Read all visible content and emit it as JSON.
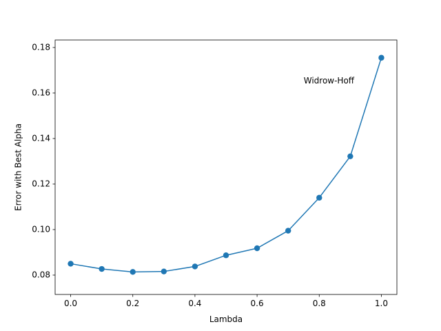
{
  "chart_data": {
    "type": "line",
    "title": "",
    "xlabel": "Lambda",
    "ylabel": "Error with Best Alpha",
    "xlim": [
      -0.05,
      1.05
    ],
    "ylim": [
      0.0715,
      0.1833
    ],
    "x_ticks": [
      0.0,
      0.2,
      0.4,
      0.6,
      0.8,
      1.0
    ],
    "x_tick_labels": [
      "0.0",
      "0.2",
      "0.4",
      "0.6",
      "0.8",
      "1.0"
    ],
    "y_ticks": [
      0.08,
      0.1,
      0.12,
      0.14,
      0.16,
      0.18
    ],
    "y_tick_labels": [
      "0.08",
      "0.10",
      "0.12",
      "0.14",
      "0.16",
      "0.18"
    ],
    "grid": false,
    "series": [
      {
        "color": "#1f77b4",
        "marker": "circle",
        "x": [
          0.0,
          0.1,
          0.2,
          0.3,
          0.4,
          0.5,
          0.6,
          0.7,
          0.8,
          0.9,
          1.0
        ],
        "y": [
          0.085,
          0.0827,
          0.0814,
          0.0816,
          0.0838,
          0.0887,
          0.0918,
          0.0995,
          0.114,
          0.1322,
          0.1755
        ]
      }
    ],
    "annotations": [
      {
        "text": "Widrow-Hoff",
        "x": 0.75,
        "y": 0.1652
      }
    ]
  }
}
